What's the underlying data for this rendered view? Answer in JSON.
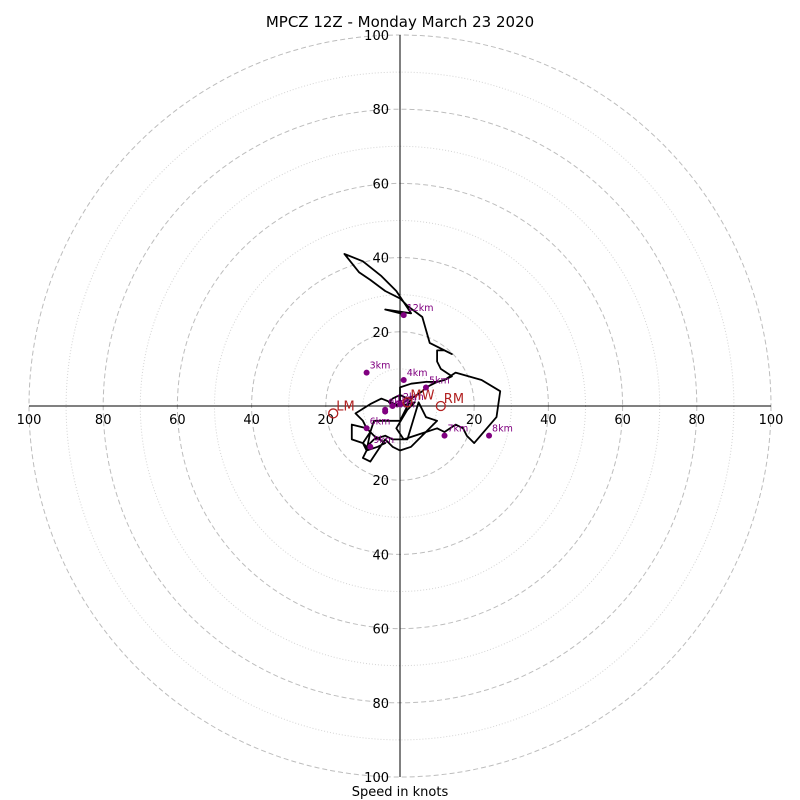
{
  "chart_data": {
    "type": "hodograph",
    "title": "MPCZ 12Z - Monday March 23 2020",
    "xlabel": "Speed in knots",
    "units": "knots",
    "range": 100,
    "major_rings": [
      20,
      40,
      60,
      80,
      100
    ],
    "minor_rings": [
      10,
      30,
      50,
      70,
      90
    ],
    "tick_labels": [
      "20",
      "40",
      "60",
      "80",
      "100"
    ],
    "grid": "dashed concentric rings",
    "colors": {
      "trace": "#000000",
      "height_markers": "#800080",
      "motion_markers": "#b22222",
      "grid": "#bdbdbd"
    },
    "hodograph_uv": [
      [
        0,
        0
      ],
      [
        -2,
        0.5
      ],
      [
        -3,
        1
      ],
      [
        -2,
        2
      ],
      [
        0,
        3
      ],
      [
        2,
        2
      ],
      [
        3,
        2.5
      ],
      [
        0,
        0
      ],
      [
        -5,
        2
      ],
      [
        -8,
        0.5
      ],
      [
        -12,
        -2
      ],
      [
        -10,
        -4
      ],
      [
        -9,
        -6
      ],
      [
        -8,
        -7
      ],
      [
        -10,
        -10
      ],
      [
        -9,
        -12
      ],
      [
        -6,
        -11
      ],
      [
        -4,
        -10
      ],
      [
        -7,
        -8
      ],
      [
        -9,
        -6
      ],
      [
        -13,
        -5
      ],
      [
        -13,
        -9
      ],
      [
        -10,
        -10
      ],
      [
        -9,
        -11
      ],
      [
        -7,
        -9
      ],
      [
        -4,
        -8
      ],
      [
        -2,
        -9
      ],
      [
        2,
        -9
      ],
      [
        5,
        1
      ],
      [
        7,
        -3
      ],
      [
        10,
        -4
      ],
      [
        3,
        -11
      ],
      [
        0,
        -12
      ],
      [
        -2,
        -11
      ],
      [
        -4,
        -9
      ],
      [
        -6,
        -12
      ],
      [
        -8,
        -15
      ],
      [
        -10,
        -14
      ],
      [
        -9,
        -12
      ],
      [
        -8,
        -7
      ],
      [
        -7,
        -4
      ],
      [
        0,
        -4
      ],
      [
        3,
        2
      ],
      [
        6,
        4
      ],
      [
        7,
        5
      ],
      [
        10,
        6.5
      ],
      [
        12,
        7
      ],
      [
        15,
        9
      ],
      [
        22,
        7
      ],
      [
        27,
        4
      ],
      [
        26,
        -3
      ],
      [
        20,
        -10
      ],
      [
        18,
        -8
      ],
      [
        17,
        -6
      ],
      [
        15,
        -5
      ],
      [
        12,
        -7
      ],
      [
        10,
        -6
      ],
      [
        7,
        -7
      ],
      [
        1,
        -9
      ],
      [
        -1,
        -6
      ],
      [
        2,
        -1
      ],
      [
        4,
        1
      ],
      [
        0,
        0
      ],
      [
        0,
        5
      ],
      [
        3,
        6
      ],
      [
        7,
        6.5
      ],
      [
        10,
        6.5
      ],
      [
        12,
        7
      ],
      [
        14,
        8
      ],
      [
        11,
        10
      ],
      [
        10,
        12
      ],
      [
        10,
        15
      ],
      [
        12,
        15
      ],
      [
        14,
        14
      ],
      [
        8,
        17
      ],
      [
        6,
        24
      ],
      [
        2,
        27
      ],
      [
        0,
        29
      ],
      [
        -4,
        31
      ],
      [
        -8,
        34
      ],
      [
        -11,
        36
      ],
      [
        -15,
        41
      ],
      [
        -10,
        39
      ],
      [
        -5,
        35
      ],
      [
        -1,
        31
      ],
      [
        1,
        28
      ],
      [
        3,
        25
      ],
      [
        -4,
        26
      ],
      [
        0,
        25
      ],
      [
        1,
        24.5
      ]
    ],
    "height_markers": [
      {
        "label": "0km",
        "u": -4,
        "v": -1
      },
      {
        "label": "1km",
        "u": -2,
        "v": 0
      },
      {
        "label": "2km",
        "u": 0,
        "v": 0.5
      },
      {
        "label": "3km",
        "u": -9,
        "v": 9
      },
      {
        "label": "4km",
        "u": 1,
        "v": 7
      },
      {
        "label": "5km",
        "u": 7,
        "v": 5
      },
      {
        "label": "6km",
        "u": -9,
        "v": -6
      },
      {
        "label": "7km",
        "u": 12,
        "v": -8
      },
      {
        "label": "8km",
        "u": 24,
        "v": -8
      },
      {
        "label": "9km",
        "u": -8,
        "v": -11
      },
      {
        "label": "10km",
        "u": -4,
        "v": -1.5
      },
      {
        "label": "12km",
        "u": 1,
        "v": 24.5
      }
    ],
    "storm_motion": [
      {
        "label": "LM",
        "u": -18,
        "v": -2
      },
      {
        "label": "RM",
        "u": 11,
        "v": 0
      },
      {
        "label": "MW",
        "u": 2,
        "v": 1
      }
    ]
  }
}
